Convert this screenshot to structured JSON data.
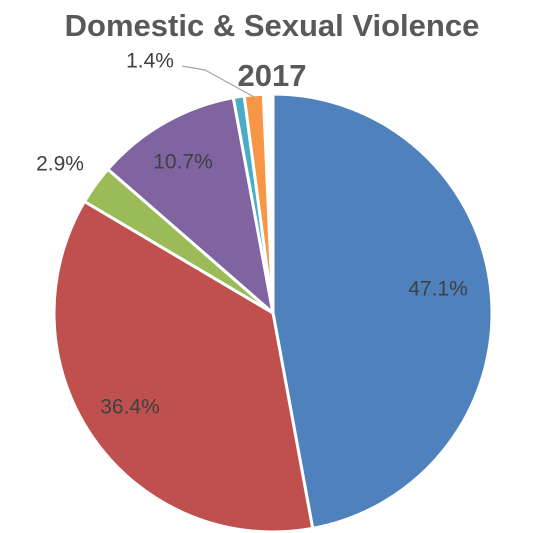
{
  "chart_data": {
    "type": "pie",
    "title": [
      "Domestic & Sexual Violence",
      "2017"
    ],
    "values": [
      47.1,
      36.4,
      2.9,
      10.7,
      0.8,
      1.4,
      0.7
    ],
    "value_labels": [
      "47.1%",
      "36.4%",
      "2.9%",
      "10.7%",
      null,
      "1.4%",
      null
    ],
    "colors": [
      "#4f81bd",
      "#c0504d",
      "#9bbb59",
      "#8064a2",
      "#4bacc6",
      "#f79646",
      "#ffffff"
    ]
  }
}
